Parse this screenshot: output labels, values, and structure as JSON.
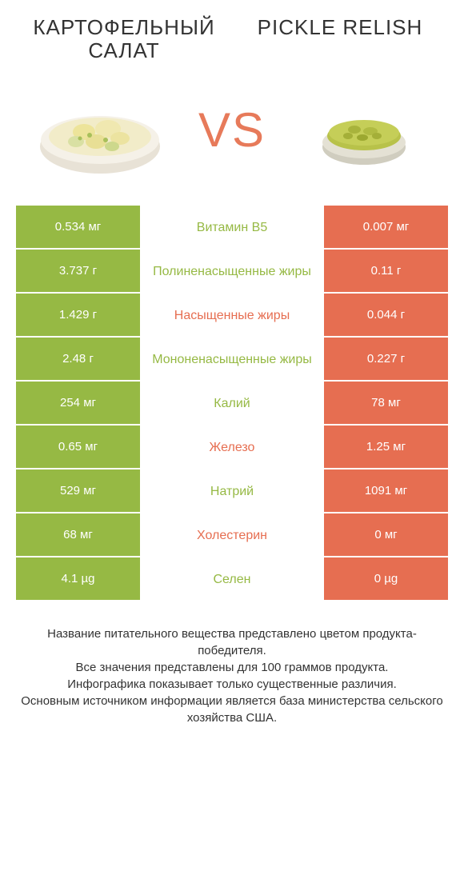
{
  "colors": {
    "left": "#96b944",
    "right": "#e66e51",
    "mid_bg": "#ffffff",
    "text": "#333333"
  },
  "header": {
    "left_title": "КАРТОФЕЛЬНЫЙ САЛАТ",
    "right_title": "PICKLE RELISH",
    "vs": "VS"
  },
  "rows": [
    {
      "left": "0.534 мг",
      "mid": "Витамин B5",
      "right": "0.007 мг",
      "winner": "left"
    },
    {
      "left": "3.737 г",
      "mid": "Полиненасыщенные жиры",
      "right": "0.11 г",
      "winner": "left"
    },
    {
      "left": "1.429 г",
      "mid": "Насыщенные жиры",
      "right": "0.044 г",
      "winner": "right"
    },
    {
      "left": "2.48 г",
      "mid": "Мононенасыщенные жиры",
      "right": "0.227 г",
      "winner": "left"
    },
    {
      "left": "254 мг",
      "mid": "Калий",
      "right": "78 мг",
      "winner": "left"
    },
    {
      "left": "0.65 мг",
      "mid": "Железо",
      "right": "1.25 мг",
      "winner": "right"
    },
    {
      "left": "529 мг",
      "mid": "Натрий",
      "right": "1091 мг",
      "winner": "left"
    },
    {
      "left": "68 мг",
      "mid": "Холестерин",
      "right": "0 мг",
      "winner": "right"
    },
    {
      "left": "4.1 µg",
      "mid": "Селен",
      "right": "0 µg",
      "winner": "left"
    }
  ],
  "footer": {
    "l1": "Название питательного вещества представлено цветом продукта-победителя.",
    "l2": "Все значения представлены для 100 граммов продукта.",
    "l3": "Инфографика показывает только существенные различия.",
    "l4": "Основным источником информации является база министерства сельского хозяйства США."
  }
}
